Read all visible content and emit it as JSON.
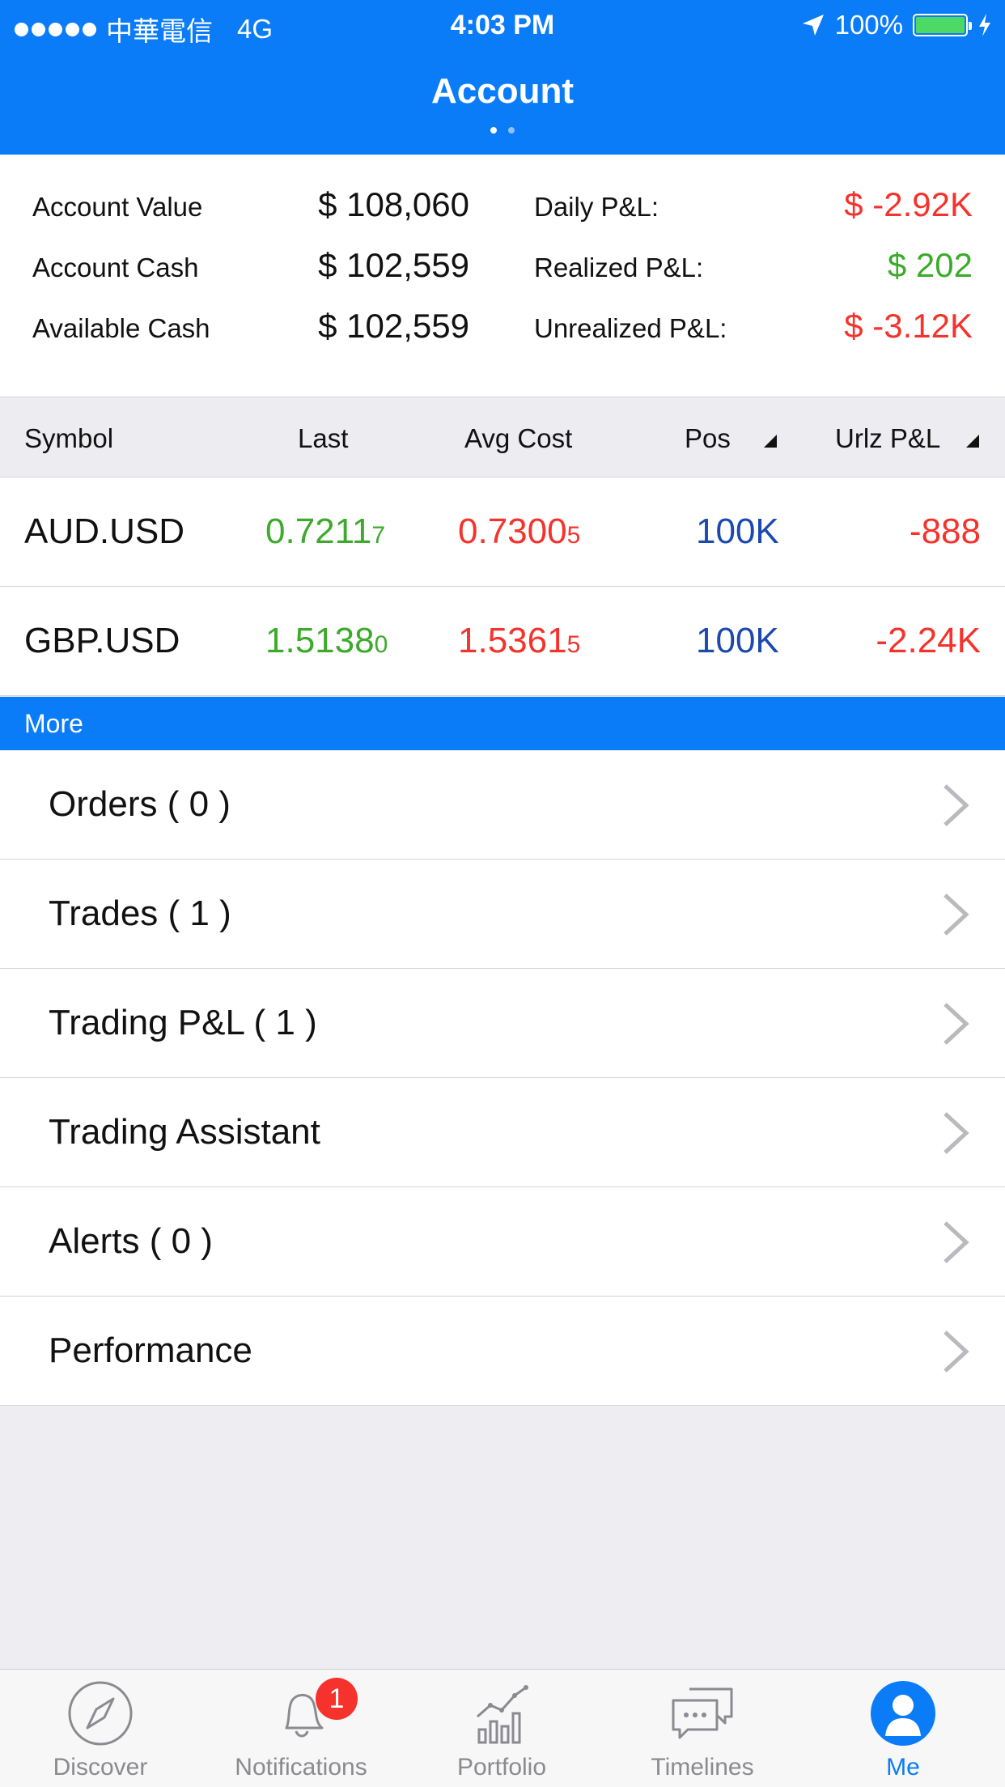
{
  "status_bar": {
    "carrier": "中華電信",
    "network": "4G",
    "time": "4:03 PM",
    "battery": "100%"
  },
  "header": {
    "title": "Account"
  },
  "summary": {
    "account_value_label": "Account Value",
    "account_value": "$ 108,060",
    "account_cash_label": "Account Cash",
    "account_cash": "$ 102,559",
    "available_cash_label": "Available Cash",
    "available_cash": "$ 102,559",
    "daily_pl_label": "Daily P&L:",
    "daily_pl": "$ -2.92K",
    "realized_pl_label": "Realized P&L:",
    "realized_pl": "$ 202",
    "unrealized_pl_label": "Unrealized P&L:",
    "unrealized_pl": "$ -3.12K"
  },
  "positions": {
    "columns": {
      "symbol": "Symbol",
      "last": "Last",
      "avg_cost": "Avg Cost",
      "pos": "Pos",
      "urlz_pl": "Urlz P&L"
    },
    "rows": [
      {
        "symbol": "AUD.USD",
        "last_main": "0.7211",
        "last_pip": "7",
        "avg_main": "0.7300",
        "avg_pip": "5",
        "pos": "100K",
        "urlz_pl": "-888"
      },
      {
        "symbol": "GBP.USD",
        "last_main": "1.5138",
        "last_pip": "0",
        "avg_main": "1.5361",
        "avg_pip": "5",
        "pos": "100K",
        "urlz_pl": "-2.24K"
      }
    ]
  },
  "more": {
    "title": "More",
    "items": [
      {
        "label": "Orders ( 0 )"
      },
      {
        "label": "Trades ( 1 )"
      },
      {
        "label": "Trading P&L ( 1 )"
      },
      {
        "label": "Trading Assistant"
      },
      {
        "label": "Alerts ( 0 )"
      },
      {
        "label": "Performance"
      }
    ]
  },
  "tabbar": {
    "discover": "Discover",
    "notifications": "Notifications",
    "notifications_badge": "1",
    "portfolio": "Portfolio",
    "timelines": "Timelines",
    "me": "Me"
  },
  "colors": {
    "brand_blue": "#0a7cf7",
    "loss_red": "#f5322b",
    "gain_green": "#3caa2a",
    "position_blue": "#1c49b0"
  }
}
